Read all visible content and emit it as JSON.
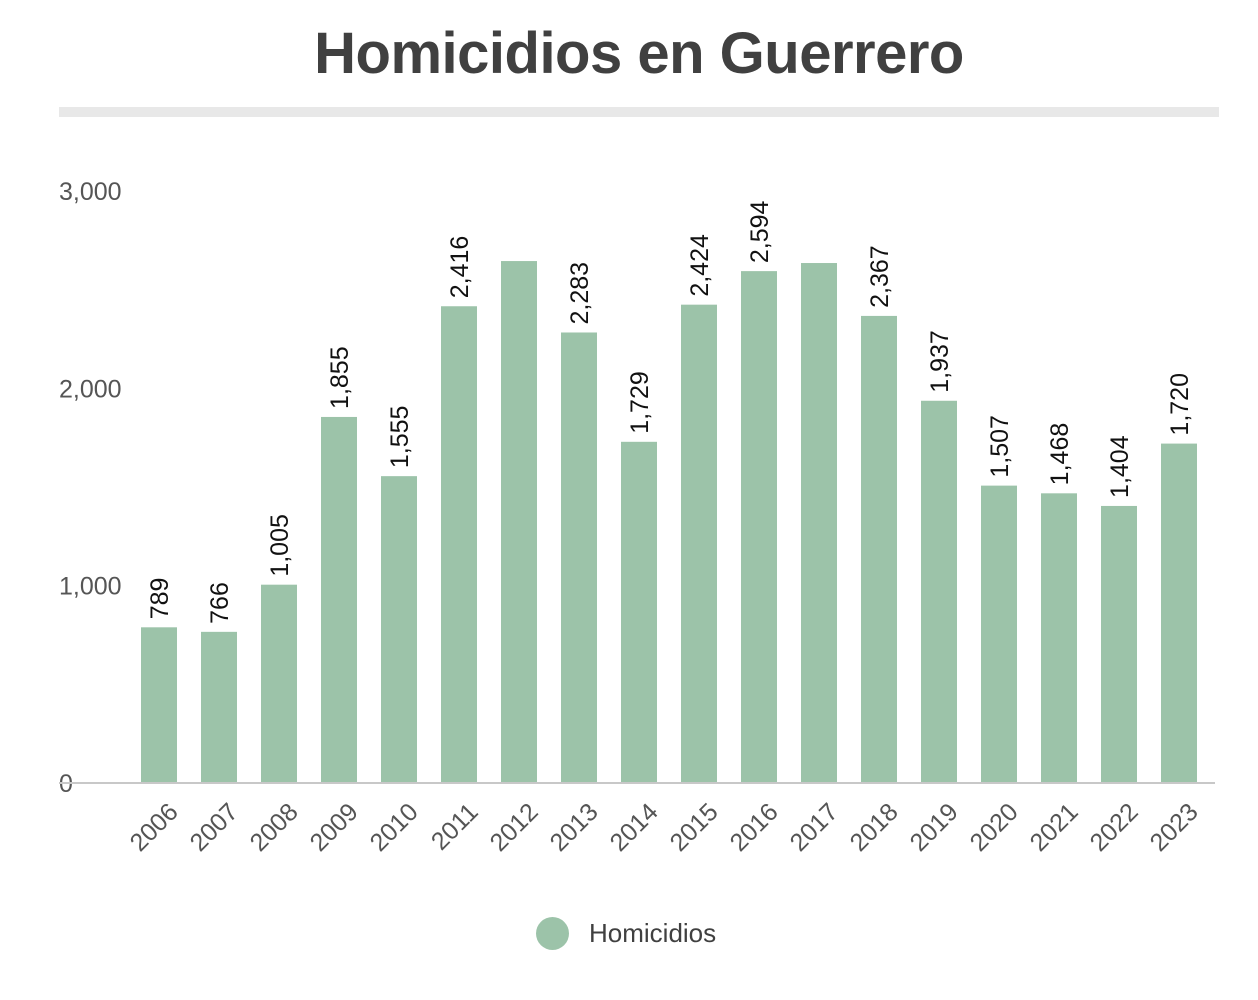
{
  "chart_data": {
    "type": "bar",
    "title": "Homicidios en Guerrero",
    "xlabel": "",
    "ylabel": "",
    "ylim": [
      0,
      3000
    ],
    "yticks": [
      0,
      1000,
      2000,
      3000
    ],
    "ytick_labels": [
      "0",
      "1,000",
      "2,000",
      "3,000"
    ],
    "grid": false,
    "legend_position": "bottom-center",
    "bar_color": "#9cc3a9",
    "categories": [
      "2006",
      "2007",
      "2008",
      "2009",
      "2010",
      "2011",
      "2012",
      "2013",
      "2014",
      "2015",
      "2016",
      "2017",
      "2018",
      "2019",
      "2020",
      "2021",
      "2022",
      "2023"
    ],
    "series": [
      {
        "name": "Homicidios",
        "values": [
          789,
          766,
          1005,
          1855,
          1555,
          2416,
          2645,
          2283,
          1729,
          2424,
          2594,
          2635,
          2367,
          1937,
          1507,
          1468,
          1404,
          1720
        ],
        "data_labels": [
          "789",
          "766",
          "1,005",
          "1,855",
          "1,555",
          "2,416",
          "",
          "2,283",
          "1,729",
          "2,424",
          "2,594",
          "",
          "2,367",
          "1,937",
          "1,507",
          "1,468",
          "1,404",
          "1,720"
        ]
      }
    ]
  }
}
